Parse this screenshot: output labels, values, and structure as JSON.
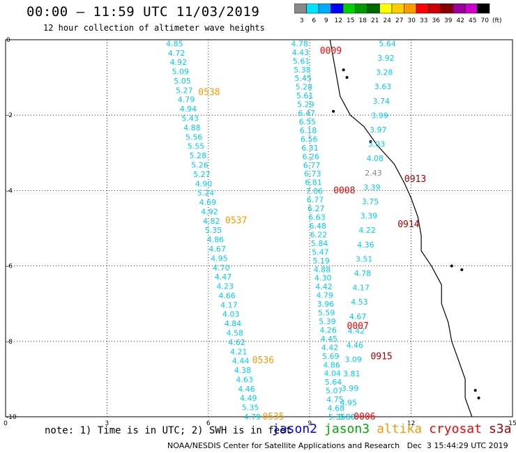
{
  "header": {
    "title": "00:00 — 11:59 UTC 11/03/2019",
    "subtitle": "12 hour collection of altimeter wave heights"
  },
  "scale": {
    "unit": "(ft)",
    "labels": [
      "3",
      "6",
      "9",
      "12",
      "15",
      "18",
      "21",
      "24",
      "27",
      "30",
      "33",
      "36",
      "39",
      "42",
      "45",
      "70"
    ],
    "colors": [
      "#888888",
      "#00e5ff",
      "#00aaff",
      "#0000ff",
      "#00d000",
      "#009900",
      "#006600",
      "#ffff00",
      "#ffcc00",
      "#ff9900",
      "#ff0000",
      "#cc0000",
      "#880000",
      "#990099",
      "#cc00cc",
      "#000000"
    ]
  },
  "footer": {
    "note": "note: 1) Time is in UTC; 2) SWH is in feet",
    "credit": "NOAA/NESDIS Center for Satellite Applications and Research   Dec  3 15:44:29 UTC 2019"
  },
  "satellites": [
    {
      "name": "jason2",
      "color": "#0000ff"
    },
    {
      "name": "jason3",
      "color": "#00aa00"
    },
    {
      "name": "altika",
      "color": "#ff9900"
    },
    {
      "name": "cryosat",
      "color": "#ff0000"
    },
    {
      "name": "s3a",
      "color": "#aa0000"
    }
  ],
  "chart_data": {
    "type": "scatter",
    "xlim": [
      0,
      15
    ],
    "ylim": [
      -10,
      0
    ],
    "x_ticks": [
      "0",
      "3",
      "6",
      "9",
      "12",
      "15"
    ],
    "y_ticks": [
      "0",
      "-2",
      "-4",
      "-6",
      "-8",
      "-10"
    ],
    "grid": true,
    "tracks": [
      {
        "x0": 5.0,
        "x1": 7.3,
        "satellite": "altika",
        "values": [
          "4.85",
          "4.72",
          "4.92",
          "5.09",
          "5.05",
          "5.27",
          "4.79",
          "4.94",
          "5.43",
          "4.88",
          "5.56",
          "5.55",
          "5.28",
          "5.26",
          "5.27",
          "4.90",
          "5.24",
          "4.69",
          "4.92",
          "4.82",
          "5.35",
          "4.86",
          "4.67",
          "4.95",
          "4.70",
          "4.47",
          "4.23",
          "4.66",
          "4.17",
          "4.03",
          "4.84",
          "4.58",
          "4.62",
          "4.21",
          "4.44",
          "4.38",
          "4.63",
          "4.46",
          "4.49",
          "5.35",
          "4.79"
        ]
      },
      {
        "x0": 8.7,
        "x1": 9.8,
        "satellite": "s3a",
        "values": [
          "4.78",
          "4.43",
          "5.61",
          "5.38",
          "5.45",
          "5.28",
          "5.61",
          "5.29",
          "6.47",
          "6.55",
          "6.18",
          "6.56",
          "6.31",
          "6.26",
          "6.77",
          "6.73",
          "6.81",
          "7.06",
          "6.77",
          "6.27",
          "6.63",
          "6.48",
          "6.22",
          "5.84",
          "5.47",
          "5.19",
          "4.88",
          "4.30",
          "4.42",
          "4.79",
          "3.96",
          "5.59",
          "5.39",
          "4.26",
          "4.45",
          "4.42",
          "5.69",
          "4.86",
          "4.04",
          "5.64",
          "5.07",
          "4.75",
          "4.68",
          "5.35"
        ]
      },
      {
        "x0": 11.3,
        "x1": 10.1,
        "satellite": "s3a",
        "values": [
          "5.64",
          "3.92",
          "3.28",
          "3.63",
          "3.74",
          "3.99",
          "3.97",
          "3.03",
          "4.08",
          "2.43",
          "3.39",
          "3.75",
          "3.39",
          "4.22",
          "4.36",
          "3.51",
          "4.78",
          "4.17",
          "4.53",
          "4.67",
          "4.42",
          "4.46",
          "3.09",
          "3.81",
          "3.99",
          "4.95",
          "3.88"
        ]
      }
    ],
    "time_labels": [
      {
        "text": "0538",
        "x": 5.7,
        "y": -1.4,
        "satellite": "altika"
      },
      {
        "text": "0537",
        "x": 6.5,
        "y": -4.8,
        "satellite": "altika"
      },
      {
        "text": "0536",
        "x": 7.3,
        "y": -8.5,
        "satellite": "altika"
      },
      {
        "text": "0535",
        "x": 7.6,
        "y": -10.0,
        "satellite": "altika"
      },
      {
        "text": "0009",
        "x": 9.3,
        "y": -0.3,
        "satellite": "cryosat"
      },
      {
        "text": "0008",
        "x": 9.7,
        "y": -4.0,
        "satellite": "cryosat"
      },
      {
        "text": "0007",
        "x": 10.1,
        "y": -7.6,
        "satellite": "cryosat"
      },
      {
        "text": "0006",
        "x": 10.3,
        "y": -10.0,
        "satellite": "cryosat"
      },
      {
        "text": "0913",
        "x": 11.8,
        "y": -3.7,
        "satellite": "s3a"
      },
      {
        "text": "0914",
        "x": 11.6,
        "y": -4.9,
        "satellite": "s3a"
      },
      {
        "text": "0915",
        "x": 10.8,
        "y": -8.4,
        "satellite": "s3a"
      }
    ]
  }
}
